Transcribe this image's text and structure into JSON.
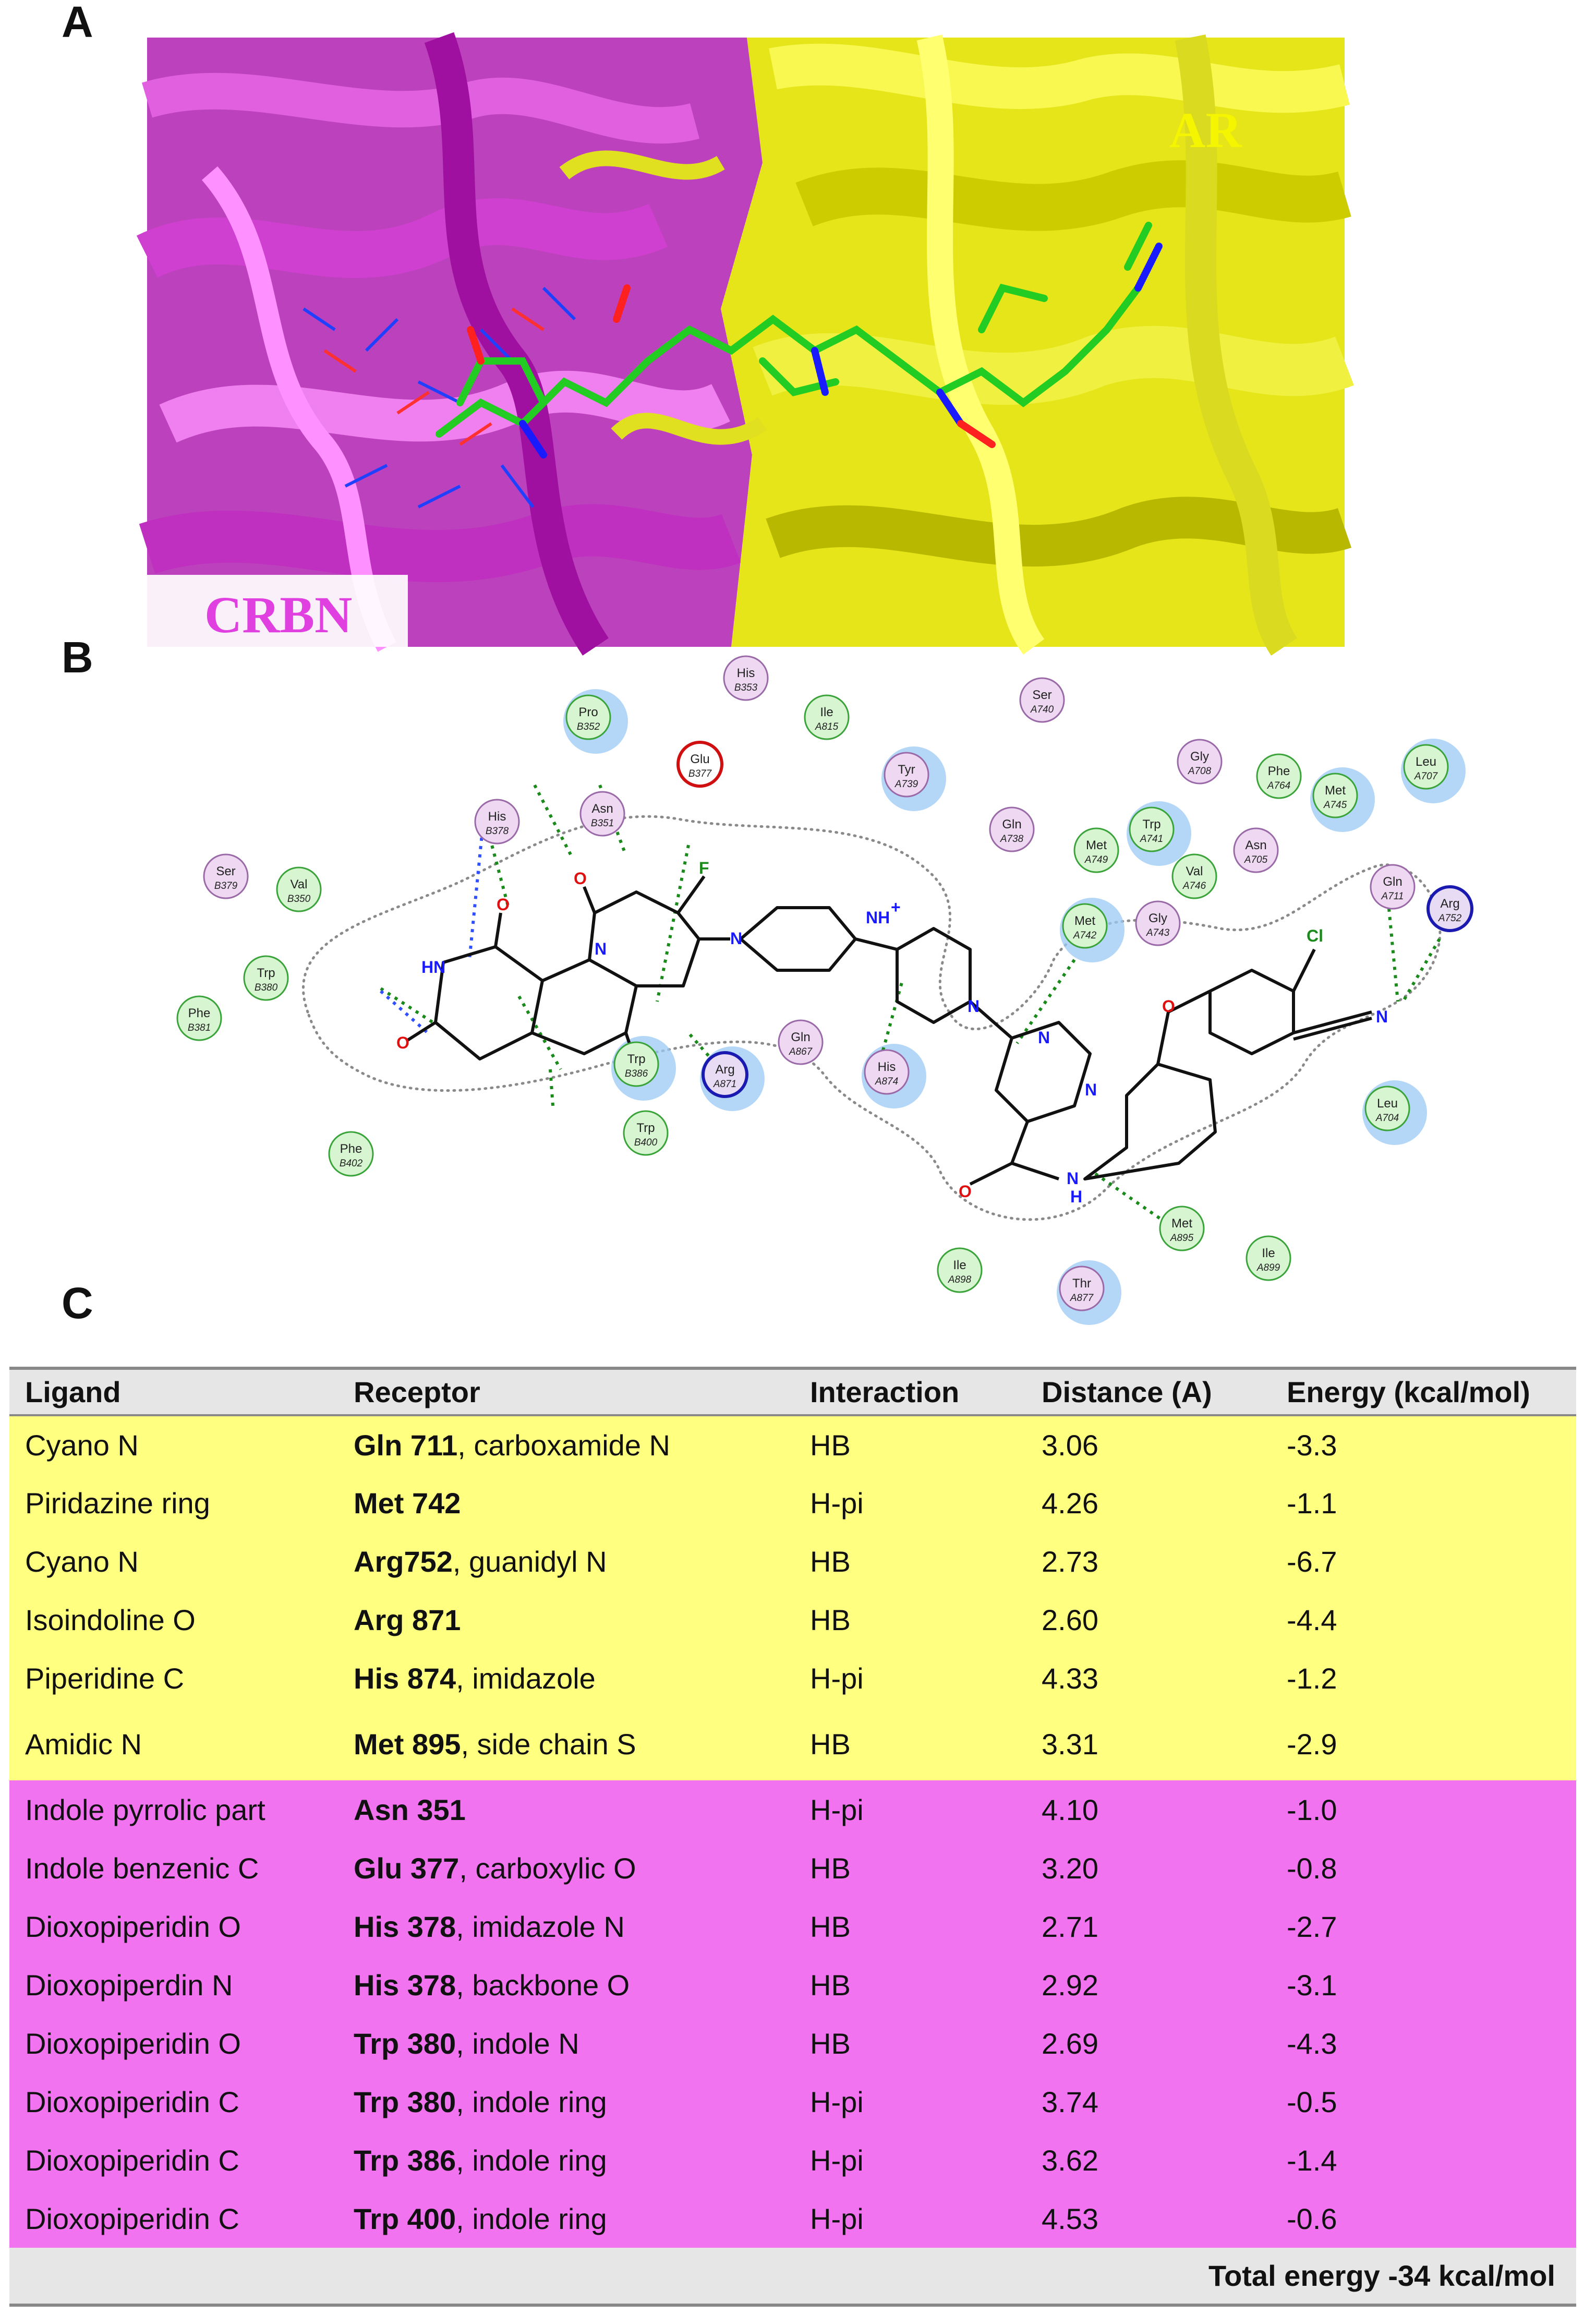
{
  "panels": {
    "a": "A",
    "b": "B",
    "c": "C"
  },
  "panelA": {
    "label_ar": "AR",
    "label_crbn": "CRBN"
  },
  "colors": {
    "ar_row": "#ffff80",
    "crbn_row": "#f173f0",
    "header_bg": "#e6e6e6",
    "ar_label": "#f5f500",
    "crbn_label": "#e040e0"
  },
  "residues": [
    {
      "name": "His",
      "id": "B353",
      "type": "p"
    },
    {
      "name": "Pro",
      "id": "B352",
      "type": "g"
    },
    {
      "name": "Ile",
      "id": "A815",
      "type": "g"
    },
    {
      "name": "Ser",
      "id": "A740",
      "type": "p"
    },
    {
      "name": "Glu",
      "id": "B377",
      "type": "acid"
    },
    {
      "name": "Tyr",
      "id": "A739",
      "type": "p"
    },
    {
      "name": "Gly",
      "id": "A708",
      "type": "p"
    },
    {
      "name": "Phe",
      "id": "A764",
      "type": "g"
    },
    {
      "name": "Leu",
      "id": "A707",
      "type": "g"
    },
    {
      "name": "Met",
      "id": "A745",
      "type": "g"
    },
    {
      "name": "His",
      "id": "B378",
      "type": "p"
    },
    {
      "name": "Asn",
      "id": "B351",
      "type": "p"
    },
    {
      "name": "Gln",
      "id": "A738",
      "type": "p"
    },
    {
      "name": "Trp",
      "id": "A741",
      "type": "g"
    },
    {
      "name": "Met",
      "id": "A749",
      "type": "g"
    },
    {
      "name": "Asn",
      "id": "A705",
      "type": "p"
    },
    {
      "name": "Val",
      "id": "A746",
      "type": "g"
    },
    {
      "name": "Ser",
      "id": "B379",
      "type": "p"
    },
    {
      "name": "Val",
      "id": "B350",
      "type": "g"
    },
    {
      "name": "Gln",
      "id": "A711",
      "type": "p"
    },
    {
      "name": "Arg",
      "id": "A752",
      "type": "base"
    },
    {
      "name": "Met",
      "id": "A742",
      "type": "g"
    },
    {
      "name": "Gly",
      "id": "A743",
      "type": "p"
    },
    {
      "name": "Trp",
      "id": "B380",
      "type": "g"
    },
    {
      "name": "Phe",
      "id": "B381",
      "type": "g"
    },
    {
      "name": "Gln",
      "id": "A867",
      "type": "p"
    },
    {
      "name": "Trp",
      "id": "B386",
      "type": "g"
    },
    {
      "name": "Arg",
      "id": "A871",
      "type": "base"
    },
    {
      "name": "His",
      "id": "A874",
      "type": "p"
    },
    {
      "name": "Leu",
      "id": "A704",
      "type": "g"
    },
    {
      "name": "Trp",
      "id": "B400",
      "type": "g"
    },
    {
      "name": "Phe",
      "id": "B402",
      "type": "g"
    },
    {
      "name": "Met",
      "id": "A895",
      "type": "g"
    },
    {
      "name": "Ile",
      "id": "A899",
      "type": "g"
    },
    {
      "name": "Ile",
      "id": "A898",
      "type": "g"
    },
    {
      "name": "Thr",
      "id": "A877",
      "type": "p"
    }
  ],
  "atoms": {
    "f": "F",
    "cl": "Cl",
    "hn": "HN",
    "nh_plus": "NH",
    "plus": "+",
    "n": "N",
    "o": "O",
    "h": "H"
  },
  "table": {
    "headers": [
      "Ligand",
      "Receptor",
      "Interaction",
      "Distance (A)",
      "Energy (kcal/mol)"
    ],
    "rows": [
      {
        "ligand": "Cyano N",
        "res": "Gln 711",
        "rest": ", carboxamide N",
        "interaction": "HB",
        "distance": "3.06",
        "energy": "-3.3",
        "group": "ar"
      },
      {
        "ligand": "Piridazine ring",
        "res": "Met 742",
        "rest": "",
        "interaction": "H-pi",
        "distance": "4.26",
        "energy": "-1.1",
        "group": "ar"
      },
      {
        "ligand": "Cyano N",
        "res": "Arg752",
        "rest": ", guanidyl N",
        "interaction": "HB",
        "distance": "2.73",
        "energy": "-6.7",
        "group": "ar"
      },
      {
        "ligand": "Isoindoline O",
        "res": "Arg 871",
        "rest": "",
        "interaction": "HB",
        "distance": "2.60",
        "energy": "-4.4",
        "group": "ar"
      },
      {
        "ligand": "Piperidine C",
        "res": "His 874",
        "rest": ", imidazole",
        "interaction": "H-pi",
        "distance": "4.33",
        "energy": "-1.2",
        "group": "ar"
      },
      {
        "ligand": "Amidic N",
        "res": "Met 895",
        "rest": ", side chain S",
        "interaction": "HB",
        "distance": "3.31",
        "energy": "-2.9",
        "group": "ar"
      },
      {
        "ligand": "Indole pyrrolic part",
        "res": "Asn 351",
        "rest": "",
        "interaction": "H-pi",
        "distance": "4.10",
        "energy": "-1.0",
        "group": "crbn"
      },
      {
        "ligand": "Indole benzenic C",
        "res": "Glu 377",
        "rest": ", carboxylic O",
        "interaction": "HB",
        "distance": "3.20",
        "energy": "-0.8",
        "group": "crbn"
      },
      {
        "ligand": "Dioxopiperidin O",
        "res": "His 378",
        "rest": ", imidazole N",
        "interaction": "HB",
        "distance": "2.71",
        "energy": "-2.7",
        "group": "crbn"
      },
      {
        "ligand": "Dioxopiperdin N",
        "res": "His 378",
        "rest": ", backbone O",
        "interaction": "HB",
        "distance": "2.92",
        "energy": "-3.1",
        "group": "crbn"
      },
      {
        "ligand": "Dioxopiperidin O",
        "res": "Trp 380",
        "rest": ", indole N",
        "interaction": "HB",
        "distance": "2.69",
        "energy": "-4.3",
        "group": "crbn"
      },
      {
        "ligand": "Dioxopiperidin C",
        "res": "Trp 380",
        "rest": ", indole ring",
        "interaction": "H-pi",
        "distance": "3.74",
        "energy": "-0.5",
        "group": "crbn"
      },
      {
        "ligand": "Dioxopiperidin C",
        "res": "Trp 386",
        "rest": ", indole ring",
        "interaction": "H-pi",
        "distance": "3.62",
        "energy": "-1.4",
        "group": "crbn"
      },
      {
        "ligand": "Dioxopiperidin C",
        "res": "Trp 400",
        "rest": ", indole ring",
        "interaction": "H-pi",
        "distance": "4.53",
        "energy": "-0.6",
        "group": "crbn"
      }
    ],
    "footer": "Total energy -34 kcal/mol"
  }
}
